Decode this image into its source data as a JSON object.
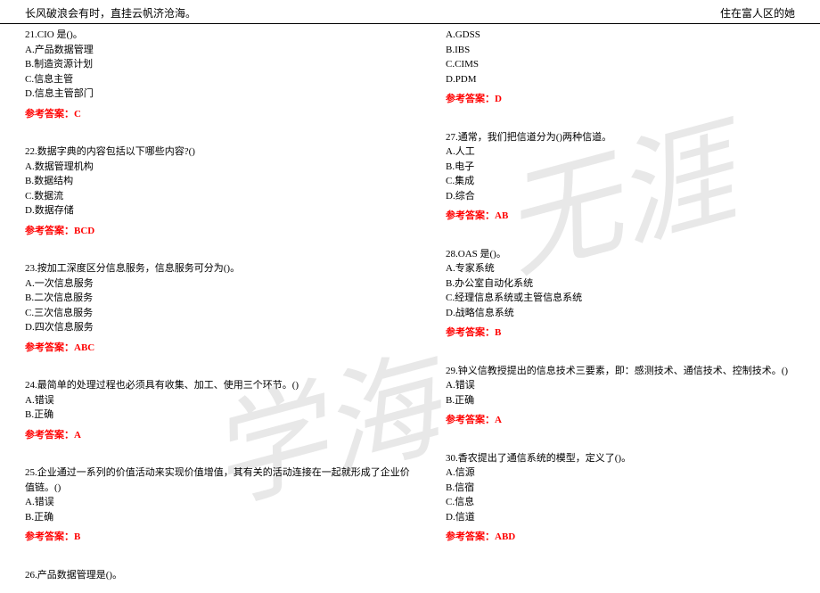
{
  "header": {
    "left": "长风破浪会有时，直挂云帆济沧海。",
    "right": "住在富人区的她"
  },
  "watermark": {
    "w1": "学海",
    "w2": "无涯"
  },
  "left_col": [
    {
      "stem": "21.CIO 是()。",
      "options": [
        "A.产品数据管理",
        "B.制造资源计划",
        "C.信息主管",
        "D.信息主管部门"
      ],
      "answer": "参考答案：C"
    },
    {
      "stem": "22.数据字典的内容包括以下哪些内容?()",
      "options": [
        "A.数据管理机构",
        "B.数据结构",
        "C.数据流",
        "D.数据存储"
      ],
      "answer": "参考答案：BCD"
    },
    {
      "stem": "23.按加工深度区分信息服务，信息服务可分为()。",
      "options": [
        "A.一次信息服务",
        "B.二次信息服务",
        "C.三次信息服务",
        "D.四次信息服务"
      ],
      "answer": "参考答案：ABC"
    },
    {
      "stem": "24.最简单的处理过程也必须具有收集、加工、使用三个环节。()",
      "options": [
        "A.错误",
        "B.正确"
      ],
      "answer": "参考答案：A"
    },
    {
      "stem": "25.企业通过一系列的价值活动来实现价值增值，其有关的活动连接在一起就形成了企业价值链。()",
      "options": [
        "A.错误",
        "B.正确"
      ],
      "answer": "参考答案：B"
    },
    {
      "stem": "26.产品数据管理是()。",
      "options": [],
      "answer": ""
    }
  ],
  "right_col": [
    {
      "stem": "",
      "options": [
        "A.GDSS",
        "B.IBS",
        "C.CIMS",
        "D.PDM"
      ],
      "answer": "参考答案：D"
    },
    {
      "stem": "27.通常，我们把信道分为()两种信道。",
      "options": [
        "A.人工",
        "B.电子",
        "C.集成",
        "D.综合"
      ],
      "answer": "参考答案：AB"
    },
    {
      "stem": "28.OAS 是()。",
      "options": [
        "A.专家系统",
        "B.办公室自动化系统",
        "C.经理信息系统或主管信息系统",
        "D.战略信息系统"
      ],
      "answer": "参考答案：B"
    },
    {
      "stem": "29.钟义信教授提出的信息技术三要素，即：感测技术、通信技术、控制技术。()",
      "options": [
        "A.错误",
        "B.正确"
      ],
      "answer": "参考答案：A"
    },
    {
      "stem": "30.香农提出了通信系统的模型，定义了()。",
      "options": [
        "A.信源",
        "B.信宿",
        "C.信息",
        "D.信道"
      ],
      "answer": "参考答案：ABD"
    }
  ]
}
